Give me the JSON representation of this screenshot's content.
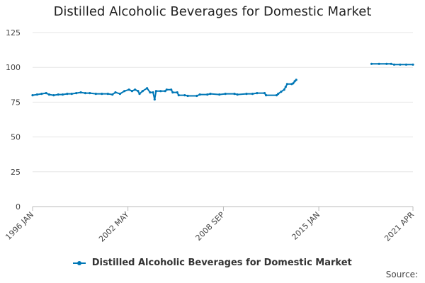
{
  "chart_data": {
    "type": "line",
    "title": "Distilled Alcoholic Beverages for Domestic Market",
    "xlabel": "",
    "ylabel": "",
    "ylim": [
      0,
      125
    ],
    "y_ticks": [
      0,
      25,
      50,
      75,
      100,
      125
    ],
    "x_range": [
      1996.0,
      2021.25
    ],
    "x_tick_labels": [
      {
        "label": "1996 JAN",
        "x": 1996.0
      },
      {
        "label": "2002 MAY",
        "x": 2002.33
      },
      {
        "label": "2008 SEP",
        "x": 2008.67
      },
      {
        "label": "2015 JAN",
        "x": 2015.0
      },
      {
        "label": "2021 APR",
        "x": 2021.25
      }
    ],
    "series": [
      {
        "name": "Distilled Alcoholic Beverages for Domestic Market",
        "color": "#0077b6",
        "segments": [
          [
            [
              1996.0,
              80
            ],
            [
              1996.3,
              80.5
            ],
            [
              1996.6,
              81
            ],
            [
              1996.9,
              81.5
            ],
            [
              1997.1,
              80.5
            ],
            [
              1997.4,
              80
            ],
            [
              1997.7,
              80.5
            ],
            [
              1998.0,
              80.5
            ],
            [
              1998.3,
              81
            ],
            [
              1998.6,
              81
            ],
            [
              1998.9,
              81.5
            ],
            [
              1999.2,
              82
            ],
            [
              1999.5,
              81.5
            ],
            [
              1999.8,
              81.5
            ],
            [
              2000.2,
              81
            ],
            [
              2000.6,
              81
            ],
            [
              2001.0,
              81
            ],
            [
              2001.3,
              80.5
            ],
            [
              2001.5,
              82
            ],
            [
              2001.8,
              81
            ],
            [
              2002.1,
              83
            ],
            [
              2002.4,
              84
            ],
            [
              2002.6,
              83
            ],
            [
              2002.8,
              84
            ],
            [
              2003.0,
              83
            ],
            [
              2003.1,
              81
            ],
            [
              2003.3,
              83
            ],
            [
              2003.6,
              85
            ],
            [
              2003.8,
              82
            ],
            [
              2004.0,
              82
            ],
            [
              2004.1,
              77
            ],
            [
              2004.2,
              83
            ],
            [
              2004.5,
              83
            ],
            [
              2004.8,
              83
            ],
            [
              2004.9,
              84
            ],
            [
              2005.2,
              84
            ],
            [
              2005.3,
              82
            ],
            [
              2005.6,
              82
            ],
            [
              2005.7,
              80
            ],
            [
              2006.1,
              80
            ],
            [
              2006.3,
              79.5
            ],
            [
              2006.9,
              79.5
            ],
            [
              2007.1,
              80.5
            ],
            [
              2007.6,
              80.5
            ],
            [
              2007.8,
              81
            ],
            [
              2008.4,
              80.5
            ],
            [
              2008.8,
              81
            ],
            [
              2009.4,
              81
            ],
            [
              2009.6,
              80.5
            ],
            [
              2010.2,
              81
            ],
            [
              2010.6,
              81
            ],
            [
              2010.9,
              81.5
            ],
            [
              2011.4,
              81.5
            ],
            [
              2011.5,
              80
            ],
            [
              2012.2,
              80
            ],
            [
              2012.3,
              81
            ],
            [
              2012.5,
              82.5
            ],
            [
              2012.7,
              84
            ],
            [
              2012.8,
              86
            ],
            [
              2012.9,
              88
            ],
            [
              2013.2,
              88
            ],
            [
              2013.3,
              88.5
            ],
            [
              2013.4,
              90
            ],
            [
              2013.5,
              91
            ]
          ],
          [
            [
              2018.5,
              102.5
            ],
            [
              2019.0,
              102.5
            ],
            [
              2019.5,
              102.5
            ],
            [
              2019.8,
              102.5
            ],
            [
              2020.0,
              102
            ],
            [
              2020.4,
              102
            ],
            [
              2020.8,
              102
            ],
            [
              2021.25,
              102
            ]
          ]
        ]
      }
    ],
    "legend": {
      "label": "Distilled Alcoholic Beverages for Domestic Market",
      "position": "bottom-center"
    },
    "source_label": "Source:",
    "grid": true
  }
}
